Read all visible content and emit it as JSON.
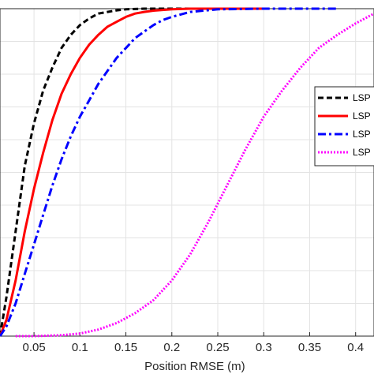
{
  "chart_data": {
    "type": "line",
    "xlabel": "Position RMSE (m)",
    "ylabel": "",
    "title": "",
    "xlim": [
      0.013,
      0.42
    ],
    "ylim": [
      0,
      1
    ],
    "x_ticks": [
      0.05,
      0.1,
      0.15,
      0.2,
      0.25,
      0.3,
      0.35,
      0.4
    ],
    "x_tick_labels": [
      "0.05",
      "0.1",
      "0.15",
      "0.2",
      "0.25",
      "0.3",
      "0.35",
      "0.4"
    ],
    "y_gridlines": 10,
    "grid": true,
    "legend_placement": "right",
    "series": [
      {
        "name": "LSP",
        "color": "#000000",
        "style": "dashed",
        "x": [
          0.013,
          0.02,
          0.03,
          0.04,
          0.05,
          0.06,
          0.07,
          0.08,
          0.09,
          0.1,
          0.11,
          0.12,
          0.13,
          0.14,
          0.15,
          0.16,
          0.17,
          0.18,
          0.2,
          0.25
        ],
        "y": [
          0.0,
          0.12,
          0.32,
          0.52,
          0.65,
          0.75,
          0.82,
          0.88,
          0.92,
          0.95,
          0.97,
          0.985,
          0.99,
          0.995,
          0.998,
          0.999,
          1.0,
          1.0,
          1.0,
          1.0
        ]
      },
      {
        "name": "LSP",
        "color": "#ff0000",
        "style": "solid",
        "x": [
          0.013,
          0.02,
          0.03,
          0.04,
          0.05,
          0.06,
          0.07,
          0.08,
          0.09,
          0.1,
          0.11,
          0.12,
          0.13,
          0.14,
          0.15,
          0.16,
          0.17,
          0.18,
          0.2,
          0.22,
          0.25,
          0.3
        ],
        "y": [
          0.0,
          0.05,
          0.17,
          0.32,
          0.45,
          0.56,
          0.66,
          0.74,
          0.8,
          0.85,
          0.89,
          0.92,
          0.945,
          0.96,
          0.975,
          0.985,
          0.99,
          0.994,
          0.998,
          1.0,
          1.0,
          1.0
        ]
      },
      {
        "name": "LSP",
        "color": "#0000ff",
        "style": "dashdot",
        "x": [
          0.013,
          0.02,
          0.03,
          0.04,
          0.05,
          0.06,
          0.07,
          0.08,
          0.09,
          0.1,
          0.11,
          0.12,
          0.13,
          0.14,
          0.15,
          0.16,
          0.17,
          0.18,
          0.19,
          0.2,
          0.22,
          0.25,
          0.3,
          0.38
        ],
        "y": [
          0.0,
          0.03,
          0.1,
          0.19,
          0.28,
          0.37,
          0.46,
          0.54,
          0.61,
          0.67,
          0.72,
          0.77,
          0.81,
          0.85,
          0.88,
          0.91,
          0.93,
          0.95,
          0.965,
          0.975,
          0.99,
          0.998,
          1.0,
          1.0
        ]
      },
      {
        "name": "LSP",
        "color": "#ff00ff",
        "style": "dotted",
        "x": [
          0.03,
          0.05,
          0.08,
          0.1,
          0.12,
          0.14,
          0.16,
          0.18,
          0.2,
          0.22,
          0.24,
          0.26,
          0.28,
          0.3,
          0.32,
          0.34,
          0.36,
          0.38,
          0.4,
          0.42
        ],
        "y": [
          0.0,
          0.0,
          0.003,
          0.008,
          0.02,
          0.04,
          0.07,
          0.11,
          0.17,
          0.25,
          0.35,
          0.46,
          0.57,
          0.67,
          0.75,
          0.82,
          0.88,
          0.92,
          0.955,
          0.985
        ]
      }
    ]
  }
}
